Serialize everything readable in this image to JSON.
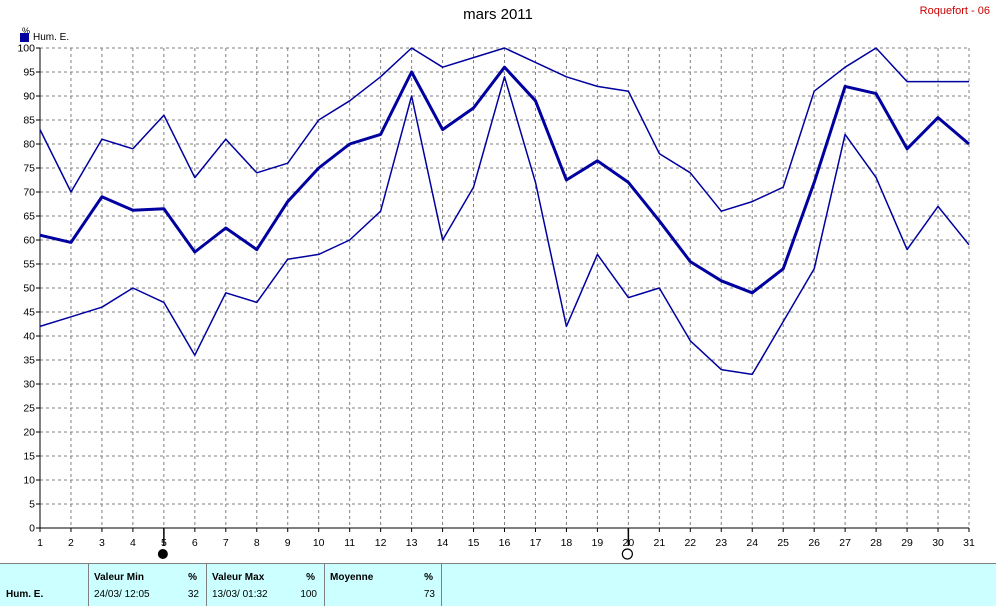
{
  "header": {
    "title": "mars 2011",
    "station": "Roquefort - 06"
  },
  "legend": {
    "label": "Hum. E."
  },
  "axis": {
    "unit_label": "%"
  },
  "stats": {
    "row_label": "Hum. E.",
    "min": {
      "header": "Valeur Min",
      "unit": "%",
      "date": "24/03/  12:05",
      "value": "32"
    },
    "max": {
      "header": "Valeur Max",
      "unit": "%",
      "date": "13/03/  01:32",
      "value": "100"
    },
    "avg": {
      "header": "Moyenne",
      "unit": "%",
      "value": "73"
    }
  },
  "colors": {
    "series": "#0000a0",
    "grid": "#808080",
    "station": "#cc0000",
    "stats_bg": "#ccffff"
  },
  "moon_phases": [
    {
      "day": 5,
      "phase": "new-moon"
    },
    {
      "day": 20,
      "phase": "full-moon"
    }
  ],
  "chart_data": {
    "type": "line",
    "title": "mars 2011",
    "ylabel": "%",
    "xlabel": "",
    "x": [
      1,
      2,
      3,
      4,
      5,
      6,
      7,
      8,
      9,
      10,
      11,
      12,
      13,
      14,
      15,
      16,
      17,
      18,
      19,
      20,
      21,
      22,
      23,
      24,
      25,
      26,
      27,
      28,
      29,
      30,
      31
    ],
    "ylim": [
      0,
      100
    ],
    "yticks": [
      0,
      5,
      10,
      15,
      20,
      25,
      30,
      35,
      40,
      45,
      50,
      55,
      60,
      65,
      70,
      75,
      80,
      85,
      90,
      95,
      100
    ],
    "grid": true,
    "legend_position": "top-left",
    "series": [
      {
        "name": "Hum. E.",
        "role": "max",
        "width": 1.5,
        "values": [
          83,
          70,
          81,
          79,
          86,
          73,
          81,
          74,
          76,
          85,
          89,
          94,
          100,
          96,
          98,
          100,
          97,
          94,
          92,
          91,
          78,
          74,
          66,
          68,
          71,
          91,
          96,
          100,
          93,
          93,
          93
        ]
      },
      {
        "name": "Hum. E.",
        "role": "mean",
        "width": 3,
        "values": [
          61,
          59.5,
          69,
          66.2,
          66.5,
          57.5,
          62.5,
          58,
          68,
          75,
          80,
          82,
          95,
          83,
          87.5,
          96,
          89,
          72.5,
          76.5,
          72,
          64,
          55.5,
          51.5,
          49,
          54,
          72,
          92,
          90.5,
          79,
          85.5,
          80
        ]
      },
      {
        "name": "Hum. E.",
        "role": "min",
        "width": 1.5,
        "values": [
          42,
          44,
          46,
          50,
          47,
          36,
          49,
          47,
          56,
          57,
          60,
          66,
          90,
          60,
          71,
          94,
          72,
          42,
          57,
          48,
          50,
          39,
          33,
          32,
          43,
          54,
          82,
          73,
          58,
          67,
          59
        ]
      }
    ]
  }
}
